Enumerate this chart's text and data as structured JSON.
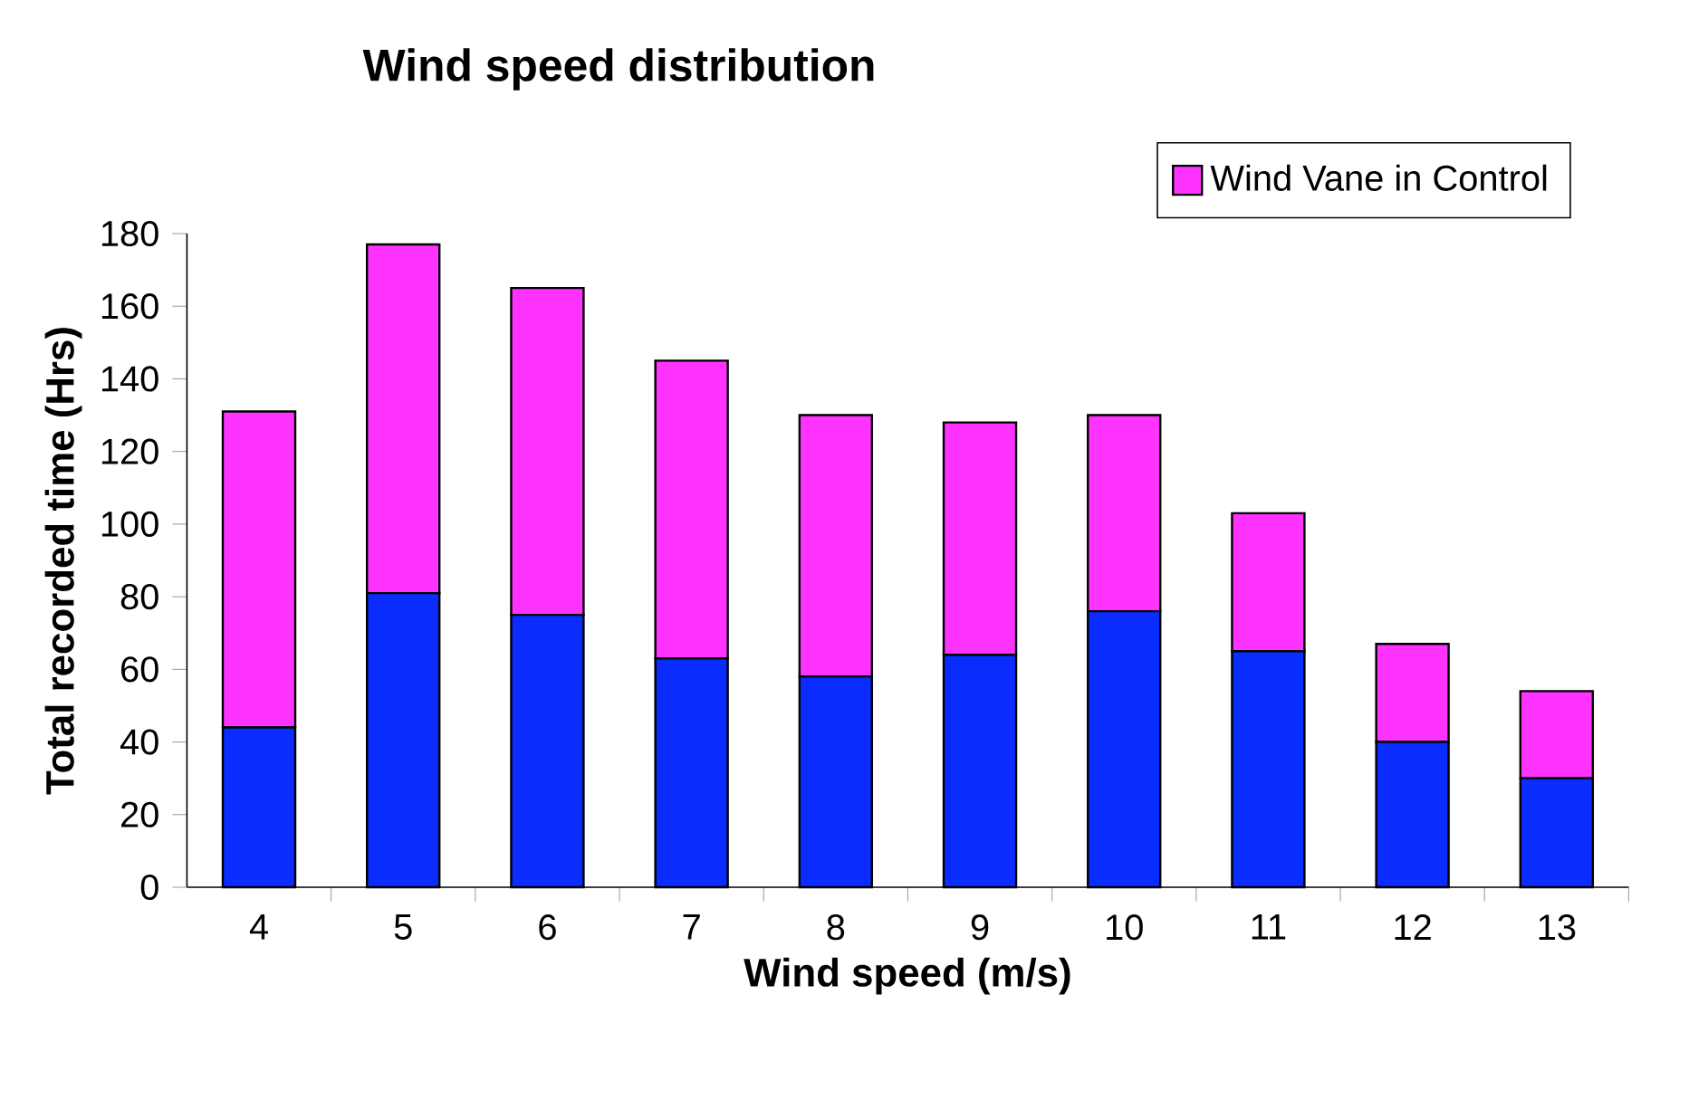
{
  "chart_data": {
    "type": "bar",
    "stacked": true,
    "title": "Wind speed distribution",
    "xlabel": "Wind speed (m/s)",
    "ylabel": "Total recorded time (Hrs)",
    "categories": [
      "4",
      "5",
      "6",
      "7",
      "8",
      "9",
      "10",
      "11",
      "12",
      "13"
    ],
    "series": [
      {
        "color": "#0a2cff",
        "values": [
          44,
          81,
          75,
          63,
          58,
          64,
          76,
          65,
          40,
          30
        ]
      },
      {
        "name": "Wind Vane in Control",
        "color": "#ff33ff",
        "values": [
          87,
          96,
          90,
          82,
          72,
          64,
          54,
          38,
          27,
          24
        ]
      }
    ],
    "ylim": [
      0,
      180
    ],
    "yticks": [
      0,
      20,
      40,
      60,
      80,
      100,
      120,
      140,
      160,
      180
    ],
    "grid": false,
    "legend": "top right"
  }
}
